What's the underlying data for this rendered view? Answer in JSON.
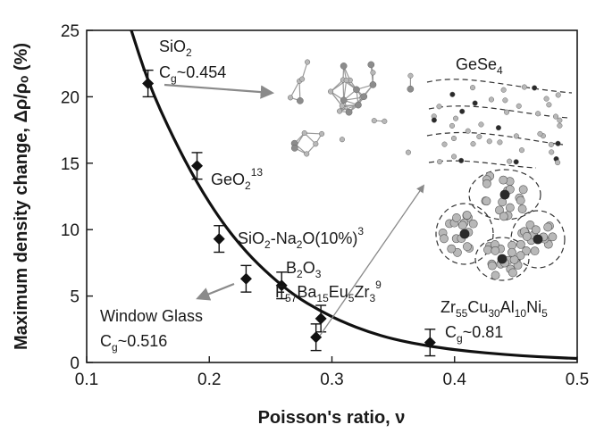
{
  "chart_data": {
    "type": "scatter",
    "title": "",
    "xlabel": "Poisson's ratio, ν",
    "ylabel": "Maximum density change, Δρ/ρₒ (%)",
    "xlim": [
      0.1,
      0.5
    ],
    "ylim": [
      0,
      25
    ],
    "x_ticks": [
      "0.1",
      "0.2",
      "0.3",
      "0.4",
      "0.5"
    ],
    "y_ticks": [
      "0",
      "5",
      "10",
      "15",
      "20",
      "25"
    ],
    "grid": false,
    "series": [
      {
        "marker": "diamond",
        "points": [
          {
            "x": 0.15,
            "y": 21.0,
            "err": 1.0
          },
          {
            "x": 0.19,
            "y": 14.8,
            "err": 1.0
          },
          {
            "x": 0.208,
            "y": 9.3,
            "err": 1.0
          },
          {
            "x": 0.23,
            "y": 6.3,
            "err": 1.0
          },
          {
            "x": 0.259,
            "y": 5.8,
            "err": 1.0
          },
          {
            "x": 0.287,
            "y": 1.9,
            "err": 1.0
          },
          {
            "x": 0.291,
            "y": 3.3,
            "err": 1.0
          },
          {
            "x": 0.38,
            "y": 1.5,
            "err": 1.0
          }
        ]
      }
    ],
    "fit_curve": {
      "description_shown": false,
      "points": [
        {
          "x": 0.135,
          "y": 25.5
        },
        {
          "x": 0.15,
          "y": 21.1
        },
        {
          "x": 0.17,
          "y": 17.0
        },
        {
          "x": 0.19,
          "y": 13.5
        },
        {
          "x": 0.21,
          "y": 10.6
        },
        {
          "x": 0.23,
          "y": 8.3
        },
        {
          "x": 0.25,
          "y": 6.5
        },
        {
          "x": 0.27,
          "y": 5.0
        },
        {
          "x": 0.29,
          "y": 3.9
        },
        {
          "x": 0.31,
          "y": 3.0
        },
        {
          "x": 0.33,
          "y": 2.3
        },
        {
          "x": 0.35,
          "y": 1.75
        },
        {
          "x": 0.38,
          "y": 1.2
        },
        {
          "x": 0.41,
          "y": 0.85
        },
        {
          "x": 0.44,
          "y": 0.6
        },
        {
          "x": 0.47,
          "y": 0.42
        },
        {
          "x": 0.5,
          "y": 0.3
        }
      ]
    },
    "annotations": {
      "sio2": {
        "name": "SiO",
        "sub": "2",
        "cg_label": "C",
        "cg_sub": "g",
        "cg_value": "~0.454"
      },
      "geo2": {
        "name": "GeO",
        "sub": "2",
        "sup": "13"
      },
      "sio2_na2o": {
        "a": "SiO",
        "a_sub": "2",
        "b": "-Na",
        "b_sub": "2",
        "c": "O(10%)",
        "sup": "3"
      },
      "b2o3": {
        "a": "B",
        "a_sub": "2",
        "b": "O",
        "b_sub": "3"
      },
      "fbez": {
        "a": "F",
        "a_sub": "57",
        "b": "Ba",
        "b_sub": "15",
        "c": "Eu",
        "c_sub": "5",
        "d": "Zr",
        "d_sub": "3",
        "sup": "9"
      },
      "window_glass": {
        "name": "Window Glass",
        "cg_label": "C",
        "cg_sub": "g",
        "cg_value": "~0.516"
      },
      "zrcu": {
        "a": "Zr",
        "a_sub": "55",
        "b": "Cu",
        "b_sub": "30",
        "c": "Al",
        "c_sub": "10",
        "d": "Ni",
        "d_sub": "5",
        "cg_label": "C",
        "cg_sub": "g",
        "cg_value": "~0.81"
      },
      "gese4": {
        "name": "GeSe",
        "sub": "4"
      }
    },
    "colors": {
      "marker": "#111111",
      "curve": "#111111",
      "arrow": "#8a8a8a",
      "atom_light": "#b8b8b8",
      "atom_dark": "#2a2a2a"
    }
  }
}
